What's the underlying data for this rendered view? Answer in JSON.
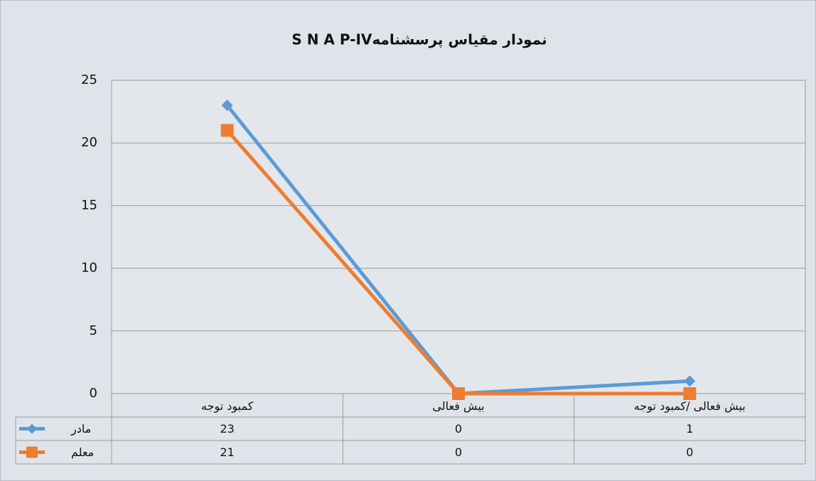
{
  "chart_data": {
    "type": "line",
    "title": "نمودار مقیاس پرسشنامهS N A P-IV",
    "categories": [
      "کمبود توجه",
      "بیش فعالی",
      "بیش فعالی /کمبود توجه"
    ],
    "series": [
      {
        "name": "مادر",
        "color": "#5b9bd5",
        "marker": "diamond",
        "values": [
          23,
          0,
          1
        ]
      },
      {
        "name": "معلم",
        "color": "#ed7d31",
        "marker": "square",
        "values": [
          21,
          0,
          0
        ]
      }
    ],
    "ylim": [
      0,
      25
    ],
    "yticks": [
      0,
      5,
      10,
      15,
      20,
      25
    ],
    "grid": true,
    "data_table": true
  }
}
